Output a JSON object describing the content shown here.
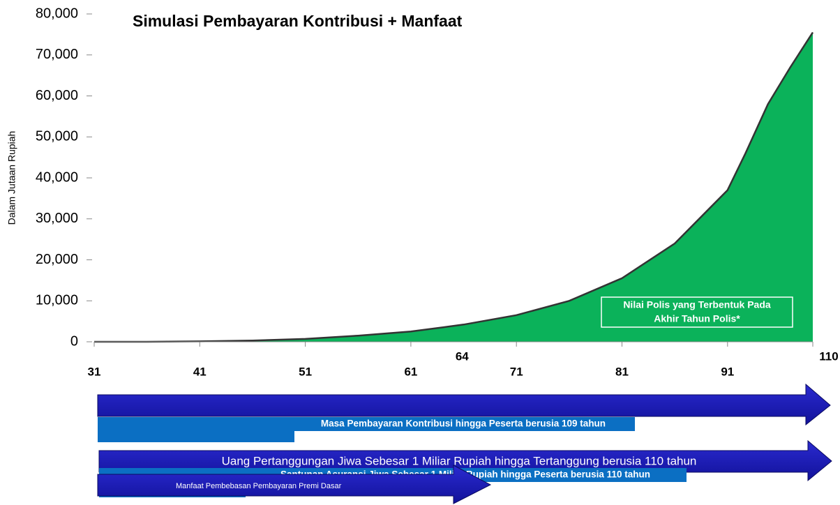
{
  "chart_data": {
    "type": "area",
    "title": "Simulasi Pembayaran Kontribusi + Manfaat",
    "y_label": "Dalam Jutaan Rupiah",
    "x": [
      31,
      36,
      41,
      46,
      51,
      56,
      61,
      66,
      71,
      76,
      81,
      86,
      91,
      95,
      100,
      105,
      110
    ],
    "values": [
      0,
      0,
      100,
      300,
      700,
      1500,
      2500,
      4200,
      6500,
      10000,
      15500,
      24000,
      37000,
      46000,
      58000,
      67000,
      75500
    ],
    "color": "#0bb25a",
    "xlim": [
      31,
      110
    ],
    "xticks": [
      31,
      41,
      51,
      61,
      71,
      81,
      91,
      110
    ],
    "highlight_tick": 64,
    "ylim": [
      0,
      80000
    ],
    "yticks": [
      0,
      {
        "value": 10000,
        "label": "10,000"
      },
      {
        "value": 20000,
        "label": "20,000"
      },
      {
        "value": 30000,
        "label": "30,000"
      },
      {
        "value": 40000,
        "label": "40,000"
      },
      {
        "value": 50000,
        "label": "50,000"
      },
      {
        "value": 60000,
        "label": "60,000"
      },
      {
        "value": 70000,
        "label": "70,000"
      },
      {
        "value": 80000,
        "label": "80,000"
      }
    ],
    "annotation": [
      "Nilai Polis yang Terbentuk Pada",
      "Akhir Tahun Polis*"
    ],
    "arrows": [
      "Masa Pembayaran Kontribusi hingga Peserta berusia 109 tahun",
      "Uang Pertanggungan Jiwa Sebesar 1 Miliar Rupiah hingga Tertanggung berusia 110 tahun",
      "Santunan Asuransi Jiwa Sebesar 1 Miliar Rupiah hingga Peserta berusia 110 tahun",
      "Manfaat Pembebasan Pembayaran Premi Dasar"
    ]
  }
}
